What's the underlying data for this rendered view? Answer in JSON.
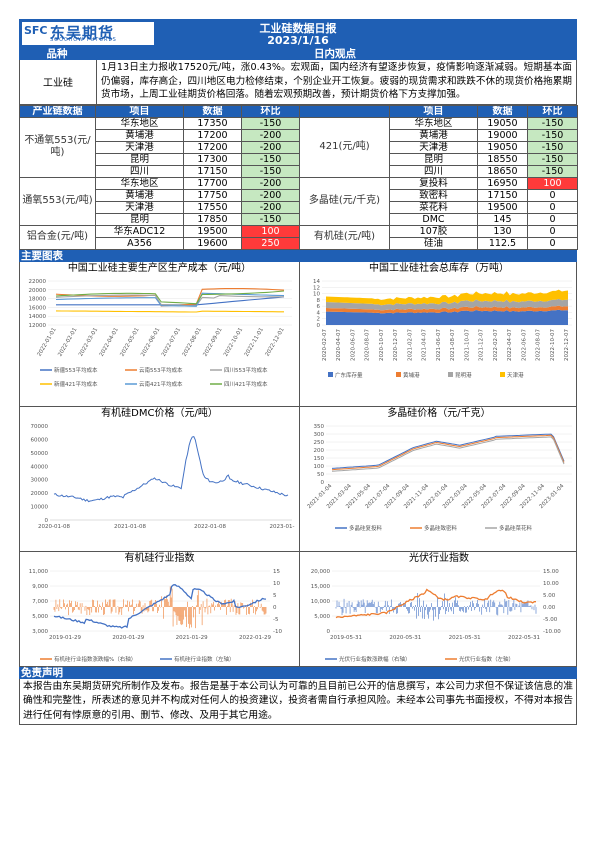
{
  "header": {
    "brand_mark": "SFC",
    "brand_cn": "东吴期货",
    "brand_en": "SOOCHOW FUTURES",
    "title": "工业硅数据日报",
    "date": "2023/1/16"
  },
  "bars": {
    "variety": "品种",
    "view": "日内观点",
    "main_chart": "主要图表",
    "disclaimer": "免责声明"
  },
  "view": {
    "variety": "工业硅",
    "text": "1月13日主力报收17520元/吨，涨0.43%。宏观面，国内经济有望逐步恢复，疫情影响逐渐减弱。短期基本面仍偏弱，库存高企，四川地区电力检修结束，个别企业开工恢复。疲弱的现货需求和跌跌不休的现货价格拖累期货市场，上周工业硅期货价格回落。随着宏观预期改善，预计期货价格下方支撑加强。"
  },
  "table": {
    "headers": [
      "产业链数据",
      "项目",
      "数据",
      "环比",
      "",
      "项目",
      "数据",
      "环比"
    ],
    "groups": {
      "l1": "不通氧553(元/吨)",
      "l2": "通氧553(元/吨)",
      "l3": "铝合金(元/吨)",
      "r1": "421(元/吨)",
      "r2": "多晶硅(元/千克)",
      "r3": "有机硅(元/吨)"
    },
    "rows": [
      {
        "li": "华东地区",
        "lv": "17350",
        "lc": "-150",
        "lcc": "g",
        "ri": "华东地区",
        "rv": "19050",
        "rc": "-150",
        "rcc": "g"
      },
      {
        "li": "黄埔港",
        "lv": "17200",
        "lc": "-200",
        "lcc": "g",
        "ri": "黄埔港",
        "rv": "19000",
        "rc": "-150",
        "rcc": "g"
      },
      {
        "li": "天津港",
        "lv": "17200",
        "lc": "-200",
        "lcc": "g",
        "ri": "天津港",
        "rv": "19050",
        "rc": "-150",
        "rcc": "g"
      },
      {
        "li": "昆明",
        "lv": "17300",
        "lc": "-150",
        "lcc": "g",
        "ri": "昆明",
        "rv": "18550",
        "rc": "-150",
        "rcc": "g"
      },
      {
        "li": "四川",
        "lv": "17150",
        "lc": "-150",
        "lcc": "g",
        "ri": "四川",
        "rv": "18650",
        "rc": "-150",
        "rcc": "g"
      },
      {
        "li": "华东地区",
        "lv": "17700",
        "lc": "-200",
        "lcc": "g",
        "ri": "复投料",
        "rv": "16950",
        "rc": "100",
        "rcc": "r"
      },
      {
        "li": "黄埔港",
        "lv": "17750",
        "lc": "-200",
        "lcc": "g",
        "ri": "致密料",
        "rv": "17150",
        "rc": "0",
        "rcc": ""
      },
      {
        "li": "天津港",
        "lv": "17550",
        "lc": "-200",
        "lcc": "g",
        "ri": "菜花料",
        "rv": "19500",
        "rc": "0",
        "rcc": ""
      },
      {
        "li": "昆明",
        "lv": "17850",
        "lc": "-150",
        "lcc": "g",
        "ri": "DMC",
        "rv": "145",
        "rc": "0",
        "rcc": ""
      },
      {
        "li": "华东ADC12",
        "lv": "19500",
        "lc": "100",
        "lcc": "r",
        "ri": "107胶",
        "rv": "130",
        "rc": "0",
        "rcc": ""
      },
      {
        "li": "A356",
        "lv": "19600",
        "lc": "250",
        "lcc": "r",
        "ri": "硅油",
        "rv": "112.5",
        "rc": "0",
        "rcc": ""
      }
    ]
  },
  "charts": {
    "c1": {
      "title": "中国工业硅主要生产区生产成本（元/吨）",
      "yticks": [
        "22000",
        "20000",
        "18000",
        "16000",
        "14000",
        "12000"
      ],
      "xticks": [
        "2022-01-01",
        "2022-02-01",
        "2022-03-01",
        "2022-04-01",
        "2022-05-01",
        "2022-06-01",
        "2022-07-01",
        "2022-08-01",
        "2022-09-01",
        "2022-10-01",
        "2022-11-01",
        "2022-12-01"
      ],
      "legend": [
        "新疆553平均成本",
        "云南553平均成本",
        "四川553平均成本",
        "新疆421平均成本",
        "云南421平均成本",
        "四川421平均成本"
      ],
      "colors": [
        "#4472c4",
        "#ed7d31",
        "#a5a5a5",
        "#ffc000",
        "#5b9bd5",
        "#70ad47"
      ]
    },
    "c2": {
      "title": "中国工业硅社会总库存（万吨）",
      "yticks": [
        "14",
        "12",
        "10",
        "8",
        "6",
        "4",
        "2",
        "0"
      ],
      "xticks": [
        "2020-02-07",
        "2020-05-07",
        "2020-08-07",
        "2020-11-07",
        "2021-02-07",
        "2021-05-07",
        "2021-08-07",
        "2021-11-07",
        "2022-02-07",
        "2022-05-07",
        "2022-08-07",
        "2022-11-07",
        "2022-12-07"
      ],
      "xticks_full": [
        "2020-02-07",
        "2020-04-07",
        "2020-06-07",
        "2020-08-07",
        "2020-10-07",
        "2020-12-07",
        "2021-02-07",
        "2021-04-07",
        "2021-06-07",
        "2021-08-07",
        "2021-10-07",
        "2021-12-07",
        "2022-02-07",
        "2022-04-07",
        "2022-06-07",
        "2022-08-07",
        "2022-10-07",
        "2022-12-07"
      ],
      "legend": [
        "广东库存量",
        "黄埔港",
        "昆明港",
        "天津港"
      ],
      "colors": [
        "#4472c4",
        "#ed7d31",
        "#a5a5a5",
        "#ffc000"
      ]
    },
    "c3": {
      "title": "有机硅DMC价格（元/吨）",
      "yticks": [
        "70000",
        "60000",
        "50000",
        "40000",
        "30000",
        "20000",
        "10000",
        "0"
      ],
      "xticks": [
        "2020-01-08",
        "2021-01-08",
        "2022-01-08",
        "2023-01-"
      ],
      "color": "#4472c4"
    },
    "c4": {
      "title": "多晶硅价格（元/千克）",
      "yticks": [
        "350",
        "300",
        "250",
        "200",
        "150",
        "100",
        "50",
        "0"
      ],
      "xticks": [
        "2021-01-04",
        "2021-03-04",
        "2021-05-04",
        "2021-07-04",
        "2021-09-04",
        "2021-11-04",
        "2022-01-04",
        "2022-03-04",
        "2022-05-04",
        "2022-07-04",
        "2022-09-04",
        "2022-11-04",
        "2023-01-04"
      ],
      "legend": [
        "多晶硅复投料",
        "多晶硅致密料",
        "多晶硅菜花料"
      ],
      "colors": [
        "#4472c4",
        "#ed7d31",
        "#a5a5a5"
      ]
    },
    "c5": {
      "title": "有机硅行业指数",
      "yticks_l": [
        "11,000",
        "9,000",
        "7,000",
        "5,000",
        "3,000"
      ],
      "yticks_r": [
        "15",
        "10",
        "5",
        "0",
        "-5",
        "-10"
      ],
      "xticks": [
        "2019-01-29",
        "2020-01-29",
        "2021-01-29",
        "2022-01-29"
      ],
      "legend": [
        "有机硅行业指数涨跌幅%（右轴）",
        "有机硅行业指数（左轴）"
      ],
      "colors": [
        "#ed7d31",
        "#4472c4"
      ]
    },
    "c6": {
      "title": "光伏行业指数",
      "yticks_l": [
        "20,000",
        "15,000",
        "10,000",
        "5,000",
        "0"
      ],
      "yticks_r": [
        "15.00",
        "10.00",
        "5.00",
        "0.00",
        "-5.00",
        "-10.00"
      ],
      "xticks": [
        "2019-05-31",
        "2020-05-31",
        "2021-05-31",
        "2022-05-31"
      ],
      "legend": [
        "光伏行业指数涨跌幅（右轴）",
        "光伏行业指数（左轴）"
      ],
      "colors": [
        "#4472c4",
        "#ed7d31"
      ]
    }
  },
  "disclaimer": "本报告由东吴期货研究所制作及发布。报告是基于本公司认为可靠的且目前已公开的信息撰写，本公司力求但不保证该信息的准确性和完整性，所表述的意见并不构成对任何人的投资建议，投资者需自行承担风险。未经本公司事先书面授权，不得对本报告进行任何有悖原意的引用、删节、修改、及用于其它用途。"
}
